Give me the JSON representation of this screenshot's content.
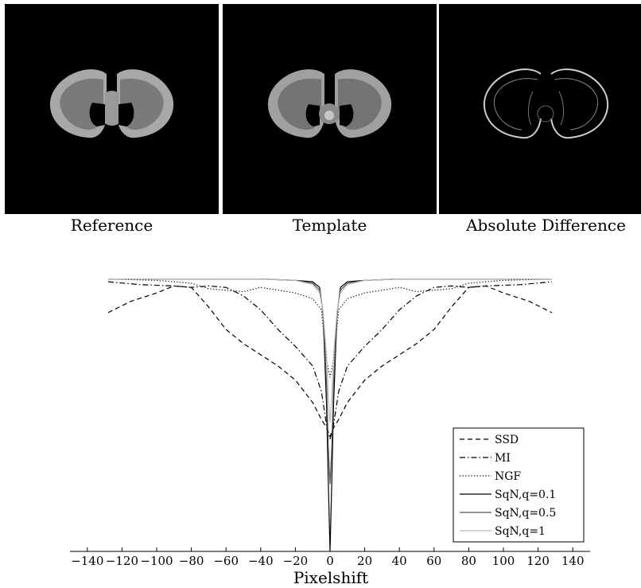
{
  "images": [
    {
      "caption": "Reference",
      "icon": "brain-slice-reference"
    },
    {
      "caption": "Template",
      "icon": "brain-slice-template"
    },
    {
      "caption": "Absolute Difference",
      "icon": "brain-slice-difference"
    }
  ],
  "chart_data": {
    "type": "line",
    "title": "",
    "xlabel": "Pixelshift",
    "ylabel": "",
    "xlim": [
      -150,
      150
    ],
    "ylim": [
      0,
      1
    ],
    "grid": false,
    "legend_position": "bottom-right",
    "x_ticks": [
      -140,
      -120,
      -100,
      -80,
      -60,
      -40,
      -20,
      0,
      20,
      40,
      60,
      80,
      100,
      120,
      140
    ],
    "series": [
      {
        "name": "SSD",
        "style": "dashed",
        "color": "#000000",
        "x": [
          -128,
          -115,
          -100,
          -90,
          -80,
          -70,
          -60,
          -50,
          -40,
          -30,
          -20,
          -10,
          -5,
          -2,
          0,
          2,
          5,
          10,
          20,
          30,
          40,
          50,
          60,
          70,
          80,
          90,
          100,
          115,
          128
        ],
        "y": [
          0.85,
          0.89,
          0.92,
          0.945,
          0.94,
          0.87,
          0.79,
          0.74,
          0.7,
          0.66,
          0.61,
          0.53,
          0.47,
          0.44,
          0.41,
          0.44,
          0.47,
          0.53,
          0.61,
          0.66,
          0.7,
          0.74,
          0.79,
          0.87,
          0.94,
          0.945,
          0.92,
          0.89,
          0.85
        ]
      },
      {
        "name": "MI",
        "style": "dashdot",
        "color": "#000000",
        "x": [
          -128,
          -110,
          -90,
          -80,
          -70,
          -60,
          -50,
          -40,
          -30,
          -20,
          -10,
          -5,
          -2,
          0,
          2,
          5,
          10,
          20,
          30,
          40,
          50,
          60,
          70,
          80,
          90,
          110,
          128
        ],
        "y": [
          0.96,
          0.95,
          0.945,
          0.94,
          0.945,
          0.94,
          0.91,
          0.86,
          0.79,
          0.73,
          0.66,
          0.57,
          0.45,
          0.4,
          0.45,
          0.57,
          0.66,
          0.73,
          0.79,
          0.86,
          0.91,
          0.94,
          0.945,
          0.94,
          0.945,
          0.95,
          0.96
        ]
      },
      {
        "name": "NGF",
        "style": "dotted",
        "color": "#000000",
        "x": [
          -128,
          -100,
          -80,
          -70,
          -60,
          -50,
          -40,
          -30,
          -20,
          -10,
          -5,
          -2,
          0,
          2,
          5,
          10,
          20,
          30,
          40,
          50,
          60,
          70,
          80,
          100,
          128
        ],
        "y": [
          0.97,
          0.965,
          0.955,
          0.935,
          0.93,
          0.925,
          0.94,
          0.93,
          0.92,
          0.9,
          0.86,
          0.68,
          0.62,
          0.68,
          0.86,
          0.9,
          0.92,
          0.93,
          0.94,
          0.925,
          0.93,
          0.935,
          0.955,
          0.965,
          0.97
        ]
      },
      {
        "name": "SqN,q=0.1",
        "style": "solid",
        "color": "#000000",
        "x": [
          -128,
          -80,
          -40,
          -20,
          -10,
          -6,
          -4,
          -2,
          -1,
          0,
          1,
          2,
          4,
          6,
          10,
          20,
          40,
          80,
          128
        ],
        "y": [
          0.97,
          0.97,
          0.97,
          0.965,
          0.96,
          0.94,
          0.84,
          0.52,
          0.25,
          0.0,
          0.25,
          0.52,
          0.84,
          0.94,
          0.96,
          0.965,
          0.97,
          0.97,
          0.97
        ]
      },
      {
        "name": "SqN,q=0.5",
        "style": "solid",
        "color": "#555555",
        "x": [
          -128,
          -80,
          -40,
          -20,
          -10,
          -6,
          -4,
          -2,
          -1,
          0,
          1,
          2,
          4,
          6,
          10,
          20,
          40,
          80,
          128
        ],
        "y": [
          0.97,
          0.97,
          0.97,
          0.965,
          0.955,
          0.93,
          0.85,
          0.6,
          0.37,
          0.24,
          0.37,
          0.6,
          0.85,
          0.93,
          0.955,
          0.965,
          0.97,
          0.97,
          0.97
        ]
      },
      {
        "name": "SqN,q=1",
        "style": "solid",
        "color": "#bbbbbb",
        "x": [
          -128,
          -80,
          -40,
          -20,
          -10,
          -6,
          -4,
          -2,
          -1,
          0,
          1,
          2,
          4,
          6,
          10,
          20,
          40,
          80,
          128
        ],
        "y": [
          0.97,
          0.97,
          0.97,
          0.965,
          0.95,
          0.92,
          0.85,
          0.7,
          0.55,
          0.46,
          0.55,
          0.7,
          0.85,
          0.92,
          0.95,
          0.965,
          0.97,
          0.97,
          0.97
        ]
      }
    ]
  }
}
